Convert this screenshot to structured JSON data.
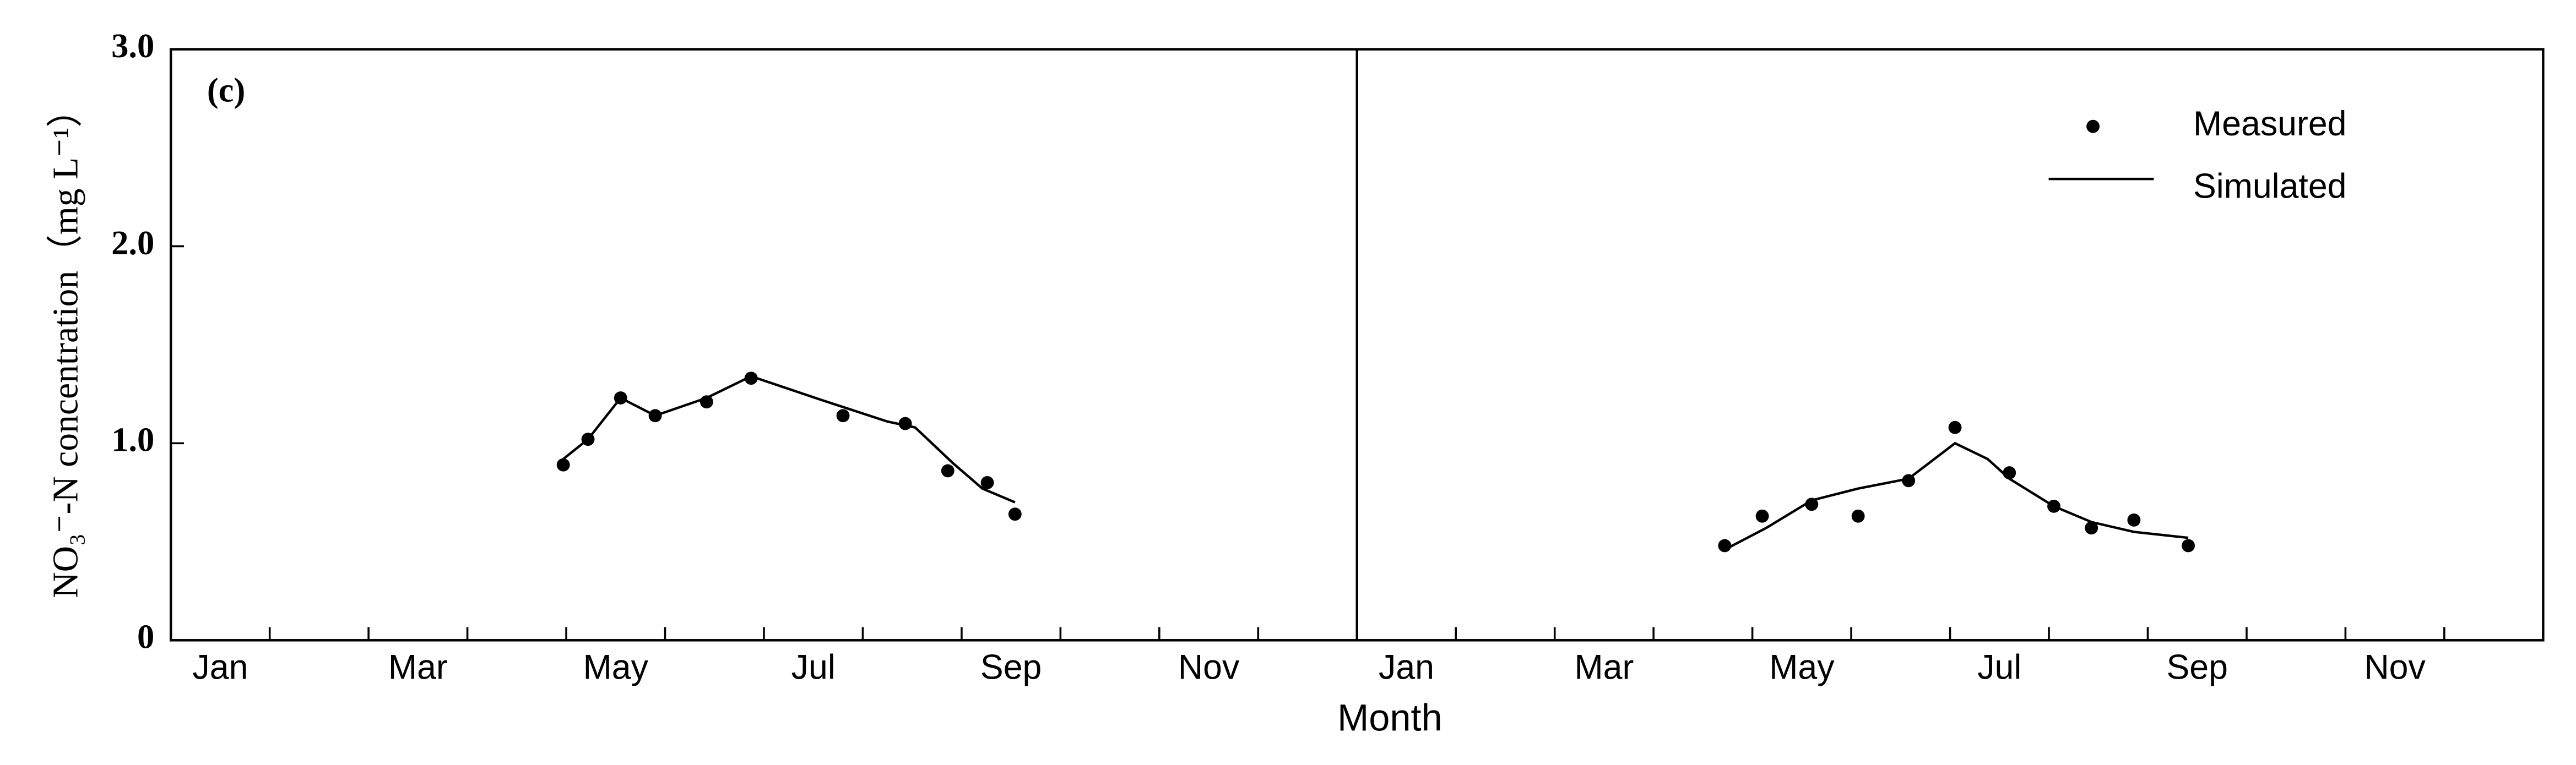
{
  "chart_data": {
    "type": "line",
    "annotation": "(c)",
    "xlabel": "Month",
    "ylabel": "NO₃⁻-N concentration（mg L⁻¹）",
    "xlim": [
      0,
      24
    ],
    "xticks": [
      {
        "value": 0.5,
        "label": "Jan"
      },
      {
        "value": 2.5,
        "label": "Mar"
      },
      {
        "value": 4.5,
        "label": "May"
      },
      {
        "value": 6.5,
        "label": "Jul"
      },
      {
        "value": 8.5,
        "label": "Sep"
      },
      {
        "value": 10.5,
        "label": "Nov"
      },
      {
        "value": 12.5,
        "label": "Jan"
      },
      {
        "value": 14.5,
        "label": "Mar"
      },
      {
        "value": 16.5,
        "label": "May"
      },
      {
        "value": 18.5,
        "label": "Jul"
      },
      {
        "value": 20.5,
        "label": "Sep"
      },
      {
        "value": 22.5,
        "label": "Nov"
      }
    ],
    "ylim": [
      0,
      3
    ],
    "yticks": [
      0,
      {
        "value": 1,
        "label": "1.0"
      },
      {
        "value": 2,
        "label": "2.0"
      },
      {
        "value": 3,
        "label": "3.0"
      }
    ],
    "legend": "upper right",
    "series": [
      {
        "name": "Measured",
        "color": "#000000",
        "mode": "markers",
        "x": [
          3.97,
          4.22,
          4.55,
          4.9,
          5.42,
          5.87,
          6.8,
          7.43,
          7.86,
          8.26,
          8.54,
          15.72,
          16.1,
          16.6,
          17.07,
          17.58,
          18.05,
          18.6,
          19.05,
          19.43,
          19.86,
          20.41
        ],
        "values": [
          0.89,
          1.02,
          1.23,
          1.14,
          1.21,
          1.33,
          1.14,
          1.1,
          0.86,
          0.8,
          0.64,
          0.48,
          0.63,
          0.69,
          0.63,
          0.81,
          1.08,
          0.85,
          0.68,
          0.57,
          0.61,
          0.48
        ]
      },
      {
        "name": "Simulated",
        "color": "#000000",
        "mode": "line",
        "x": [
          3.92,
          4.22,
          4.55,
          4.9,
          5.42,
          5.87,
          6.58,
          7.25,
          7.53,
          7.91,
          8.21,
          8.54
        ],
        "values": [
          0.9,
          1.02,
          1.23,
          1.14,
          1.23,
          1.34,
          1.22,
          1.11,
          1.08,
          0.9,
          0.77,
          0.7
        ]
      },
      {
        "color": "#000000",
        "mode": "line",
        "x": [
          15.72,
          16.14,
          16.6,
          17.07,
          17.58,
          18.05,
          18.38,
          18.6,
          19.05,
          19.43,
          19.86,
          20.41
        ],
        "values": [
          0.46,
          0.57,
          0.71,
          0.77,
          0.82,
          1.0,
          0.92,
          0.82,
          0.68,
          0.6,
          0.55,
          0.52
        ]
      }
    ]
  }
}
